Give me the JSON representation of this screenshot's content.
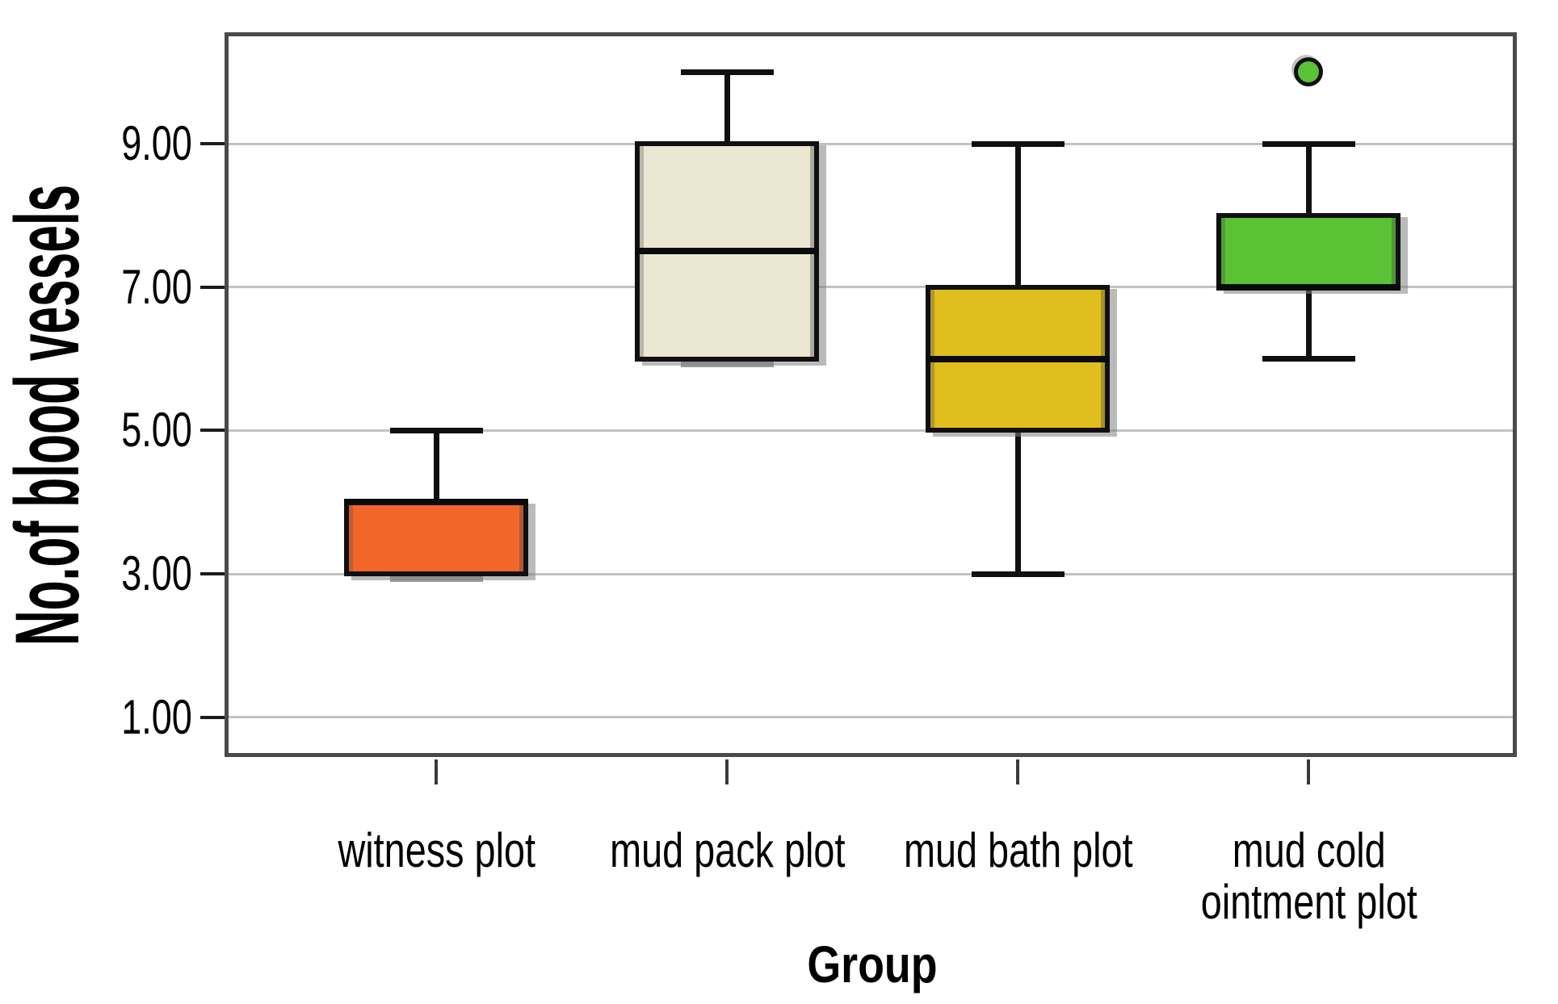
{
  "y_axis": {
    "title": "No.of blood vessels",
    "tick_labels": [
      "9.00",
      "7.00",
      "5.00",
      "3.00",
      "1.00"
    ],
    "tick_values": [
      9,
      7,
      5,
      3,
      1
    ]
  },
  "x_axis": {
    "title": "Group",
    "category_label_lines": [
      [
        "witness plot"
      ],
      [
        "mud pack plot"
      ],
      [
        "mud bath plot"
      ],
      [
        "mud cold",
        "ointment plot"
      ]
    ]
  },
  "chart_data": {
    "type": "boxplot",
    "title": "",
    "xlabel": "Group",
    "ylabel": "No.of blood vessels",
    "categories": [
      "witness plot",
      "mud pack plot",
      "mud bath plot",
      "mud cold ointment plot"
    ],
    "ylim": [
      0.5,
      10.5
    ],
    "yticks": [
      9,
      7,
      5,
      3,
      1
    ],
    "ytick_labels": [
      "9.00",
      "7.00",
      "5.00",
      "3.00",
      "1.00"
    ],
    "grid": "horizontal",
    "legend": "none",
    "series": [
      {
        "name": "witness plot",
        "color": "#f2662a",
        "min": 3,
        "q1": 3,
        "median": 4,
        "q3": 4,
        "max": 5,
        "outliers": []
      },
      {
        "name": "mud pack plot",
        "color": "#ebe7d3",
        "min": 6,
        "q1": 6,
        "median": 7.5,
        "q3": 9,
        "max": 10,
        "outliers": []
      },
      {
        "name": "mud bath plot",
        "color": "#e0be1e",
        "min": 3,
        "q1": 5,
        "median": 6,
        "q3": 7,
        "max": 9,
        "outliers": []
      },
      {
        "name": "mud cold ointment plot",
        "color": "#5bc236",
        "min": 6,
        "q1": 7,
        "median": 7,
        "q3": 8,
        "max": 9,
        "outliers": [
          10
        ]
      }
    ],
    "colors": {
      "box_border": "#101010",
      "whisker": "#101010",
      "gridline": "#c2c2c2",
      "frame": "#4a4a4a",
      "background": "#ffffff"
    }
  }
}
